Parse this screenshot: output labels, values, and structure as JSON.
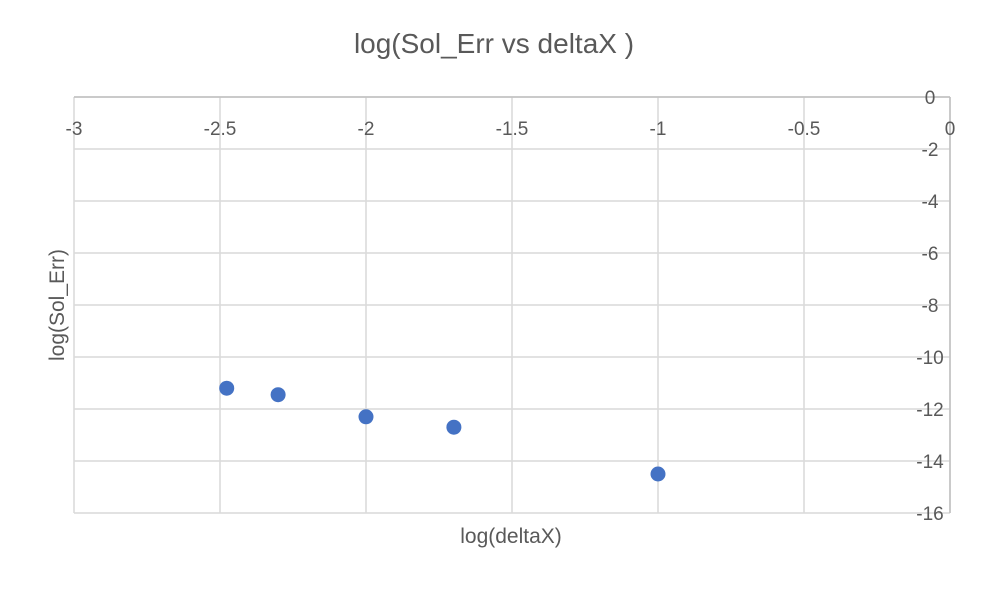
{
  "chart_data": {
    "type": "scatter",
    "title": "log(Sol_Err vs deltaX )",
    "xlabel": "log(deltaX)",
    "ylabel": "log(Sol_Err)",
    "xlim": [
      -3,
      0
    ],
    "ylim": [
      -16,
      0
    ],
    "x_ticks": [
      -3,
      -2.5,
      -2,
      -1.5,
      -1,
      -0.5,
      0
    ],
    "y_ticks": [
      0,
      -2,
      -4,
      -6,
      -8,
      -10,
      -12,
      -14,
      -16
    ],
    "x_tick_labels": [
      "-3",
      "-2.5",
      "-2",
      "-1.5",
      "-1",
      "-0.5",
      "0"
    ],
    "y_tick_labels": [
      "0",
      "-2",
      "-4",
      "-6",
      "-8",
      "-10",
      "-12",
      "-14",
      "-16"
    ],
    "grid": true,
    "x_axis_position": "top",
    "y_axis_position": "right",
    "marker_color": "#4472C4",
    "gridline_color": "#D9D9D9",
    "series": [
      {
        "x": [
          -2.477,
          -2.301,
          -2.0,
          -1.699,
          -1.0
        ],
        "y": [
          -11.2,
          -11.45,
          -12.3,
          -12.7,
          -14.5
        ]
      }
    ]
  }
}
